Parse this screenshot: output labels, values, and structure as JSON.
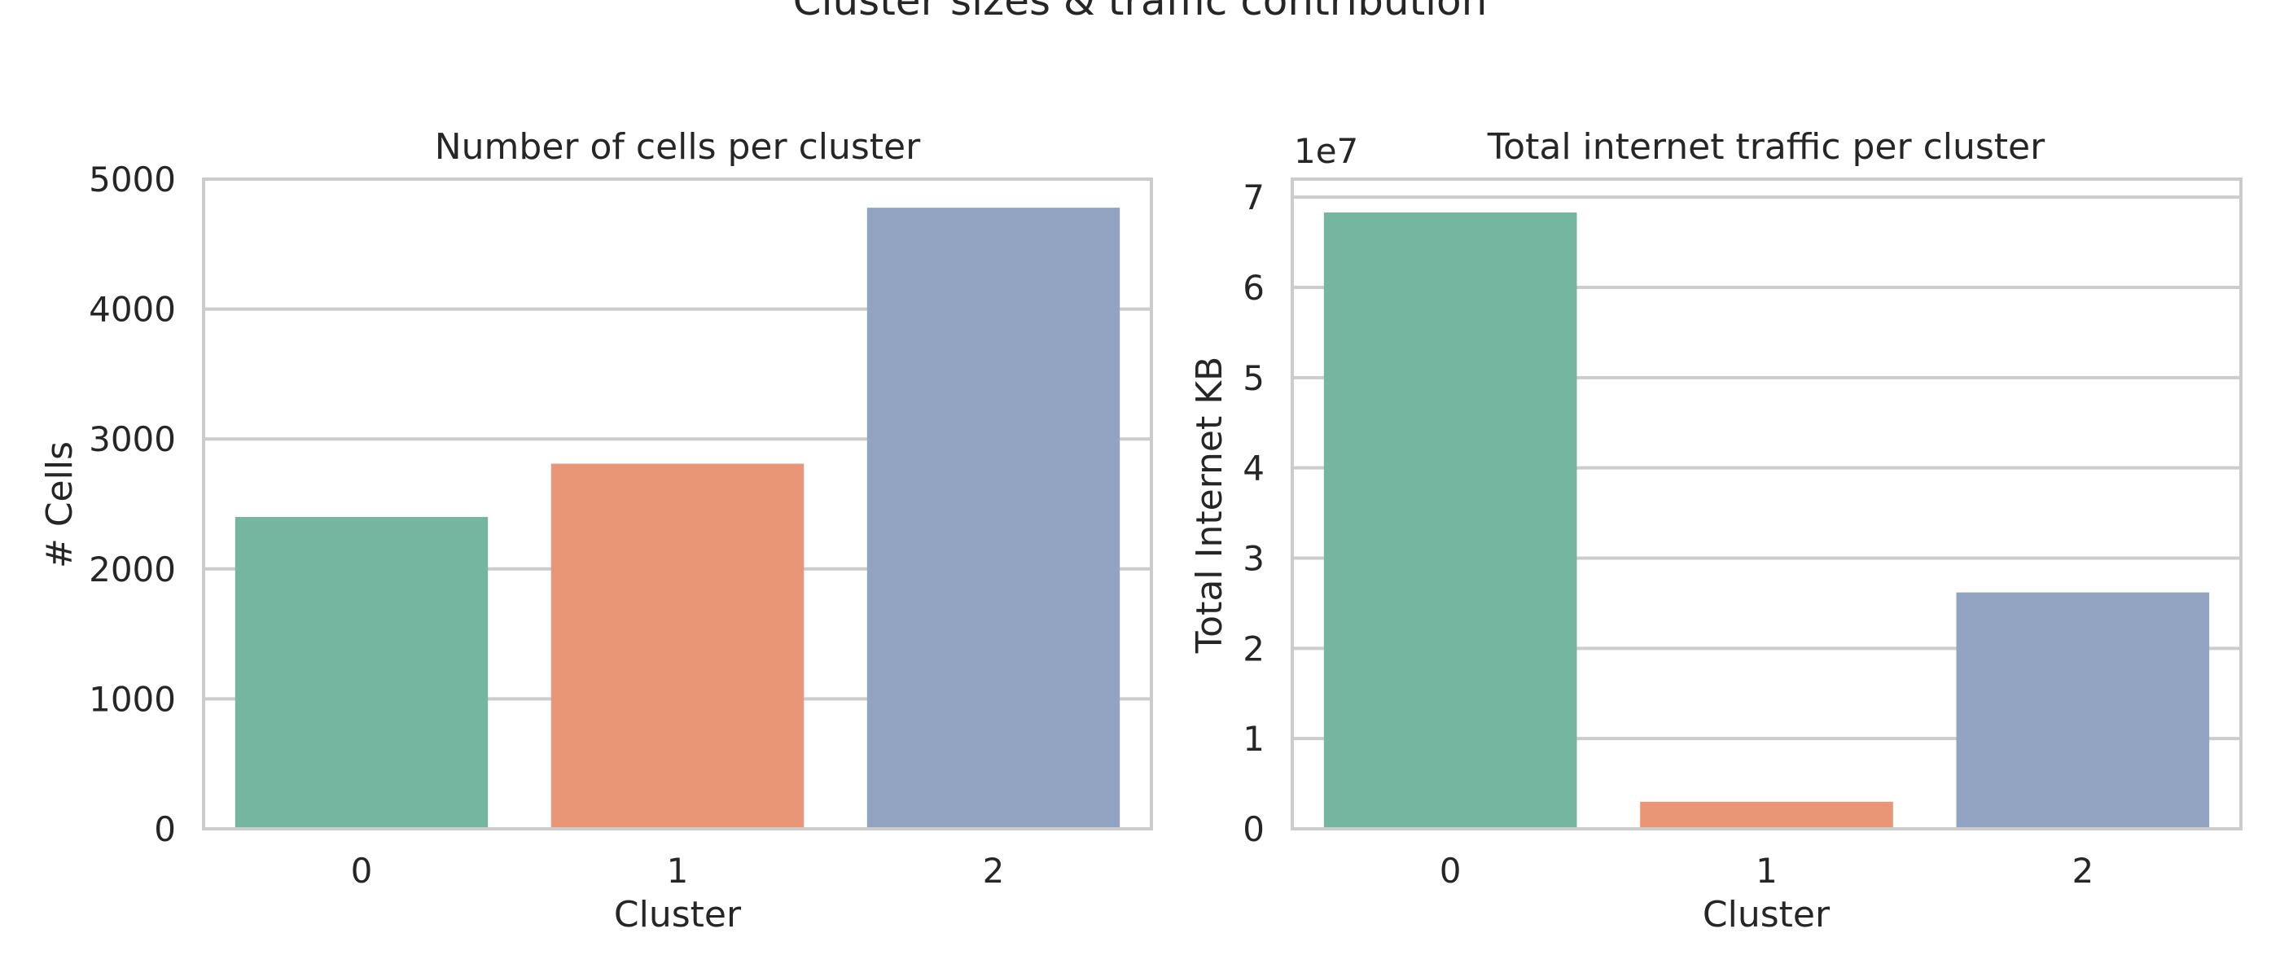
{
  "figure_title": "Cluster sizes & traffic contribution",
  "colors": {
    "cluster_0": "#74b6a0",
    "cluster_1": "#e99676",
    "cluster_2": "#93a4c3",
    "grid": "#cccccc",
    "spine": "#cccccc",
    "text": "#262626"
  },
  "chart_data": [
    {
      "type": "bar",
      "title": "Number of cells per cluster",
      "xlabel": "Cluster",
      "ylabel": "# Cells",
      "categories": [
        "0",
        "1",
        "2"
      ],
      "values": [
        2400,
        2810,
        4780
      ],
      "ylim": [
        0,
        5000
      ],
      "yticks": [
        0,
        1000,
        2000,
        3000,
        4000,
        5000
      ],
      "ytick_labels": [
        "0",
        "1000",
        "2000",
        "3000",
        "4000",
        "5000"
      ],
      "offset_label": "",
      "grid": true
    },
    {
      "type": "bar",
      "title": "Total internet traffic per cluster",
      "xlabel": "Cluster",
      "ylabel": "Total Internet KB",
      "categories": [
        "0",
        "1",
        "2"
      ],
      "values": [
        68300000,
        3000000,
        26200000
      ],
      "ylim": [
        0,
        72000000
      ],
      "yticks": [
        0,
        10000000,
        20000000,
        30000000,
        40000000,
        50000000,
        60000000,
        70000000
      ],
      "ytick_labels": [
        "0",
        "1",
        "2",
        "3",
        "4",
        "5",
        "6",
        "7"
      ],
      "offset_label": "1e7",
      "grid": true
    }
  ]
}
